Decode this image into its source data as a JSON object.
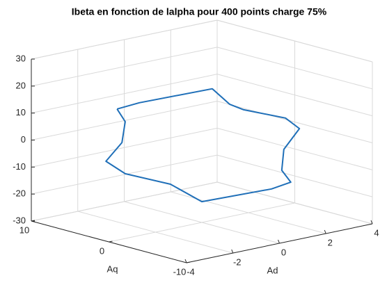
{
  "chart_data": {
    "type": "line3d",
    "title": "Ibeta en fonction de lalpha pour 400 points charge 75%",
    "xlabel": "Ad",
    "ylabel": "Aq",
    "xlim": [
      -4,
      4
    ],
    "ylim": [
      -10,
      10
    ],
    "zlim": [
      -30,
      30
    ],
    "xticks": [
      -4,
      -2,
      0,
      2,
      4
    ],
    "yticks": [
      -10,
      0,
      10
    ],
    "zticks": [
      -30,
      -20,
      -10,
      0,
      10,
      20,
      30
    ],
    "grid": true,
    "series": [
      {
        "color": "#1f6fb8",
        "x": [
          -3.65,
          -2.69,
          0.45,
          1.2,
          1.8,
          3.6,
          4.2,
          3.53,
          3.44,
          3.83,
          3.0,
          0,
          -1.35,
          -3.3,
          -4.13,
          -3.44,
          -3.3,
          -3.65
        ],
        "y": [
          0,
          0,
          0,
          0,
          0,
          0,
          0,
          0,
          0,
          0,
          0,
          0,
          0,
          0,
          0,
          0,
          0,
          0
        ],
        "z": [
          18.6,
          19.2,
          18.7,
          11.6,
          8.5,
          2.2,
          -2.8,
          -9.3,
          -16.9,
          -22,
          -23,
          -22.3,
          -13.4,
          -6,
          0.1,
          5.8,
          13.3,
          18.6
        ]
      }
    ]
  }
}
